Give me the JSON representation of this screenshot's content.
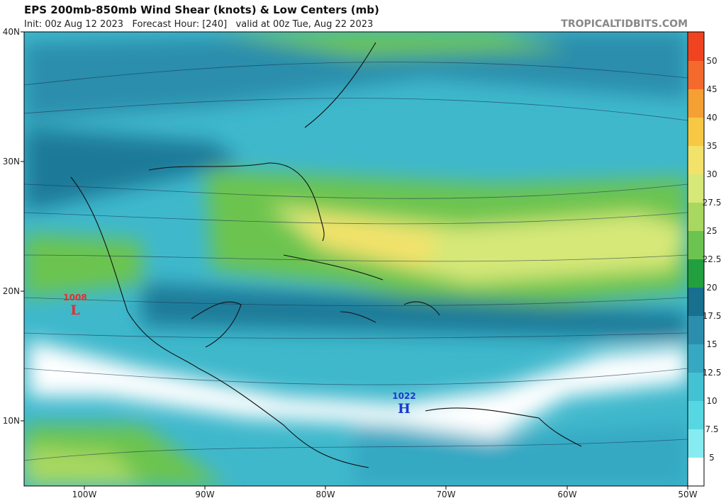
{
  "header": {
    "title": "EPS 200mb-850mb Wind Shear (knots) & Low Centers (mb)",
    "subtitle": "Init: 00z Aug 12 2023   Forecast Hour: [240]   valid at 00z Tue, Aug 22 2023",
    "source": "TROPICALTIDBITS.COM"
  },
  "map": {
    "lat_labels": [
      "40N",
      "30N",
      "20N",
      "10N"
    ],
    "lon_labels": [
      "100W",
      "90W",
      "80W",
      "70W",
      "60W",
      "50W"
    ],
    "centers": [
      {
        "pressure": "1008",
        "symbol": "L",
        "color": "#e03030"
      },
      {
        "pressure": "1022",
        "symbol": "H",
        "color": "#1a3acc"
      }
    ]
  },
  "colorbar": {
    "labels": [
      "50",
      "45",
      "40",
      "35",
      "30",
      "27.5",
      "25",
      "22.5",
      "20",
      "17.5",
      "15",
      "12.5",
      "10",
      "7.5",
      "5"
    ],
    "colors": [
      "#f04420",
      "#f46a2c",
      "#f5a033",
      "#f6c843",
      "#f2e26a",
      "#d6e878",
      "#a8d860",
      "#6cc450",
      "#22a040",
      "#16708e",
      "#2a8eac",
      "#36a8c2",
      "#42c2d2",
      "#56d8e2",
      "#86ecf2",
      "#ffffff"
    ]
  }
}
